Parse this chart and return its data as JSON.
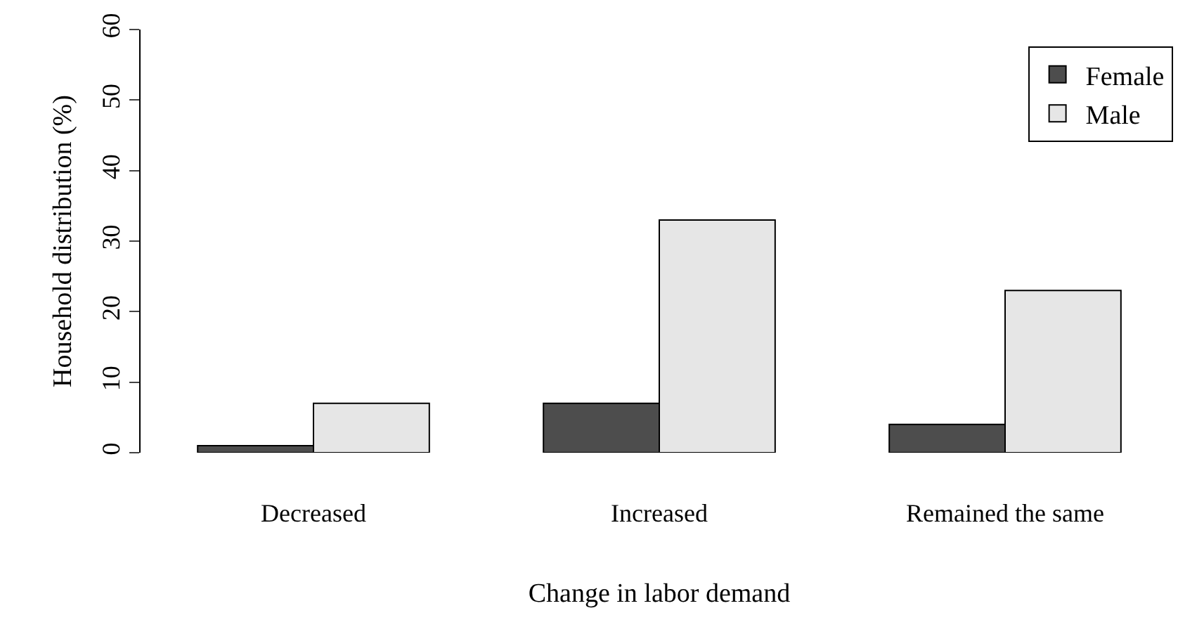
{
  "chart_data": {
    "type": "bar",
    "xlabel": "Change in labor demand",
    "ylabel": "Household distribution (%)",
    "categories": [
      "Decreased",
      "Increased",
      "Remained the same"
    ],
    "series": [
      {
        "name": "Female",
        "color": "#4d4d4d",
        "values": [
          1,
          7,
          4
        ]
      },
      {
        "name": "Male",
        "color": "#e6e6e6",
        "values": [
          7,
          33,
          23
        ]
      }
    ],
    "ylim": [
      0,
      60
    ],
    "yticks": [
      0,
      10,
      20,
      30,
      40,
      50,
      60
    ],
    "grid": false,
    "legend": "top right"
  }
}
